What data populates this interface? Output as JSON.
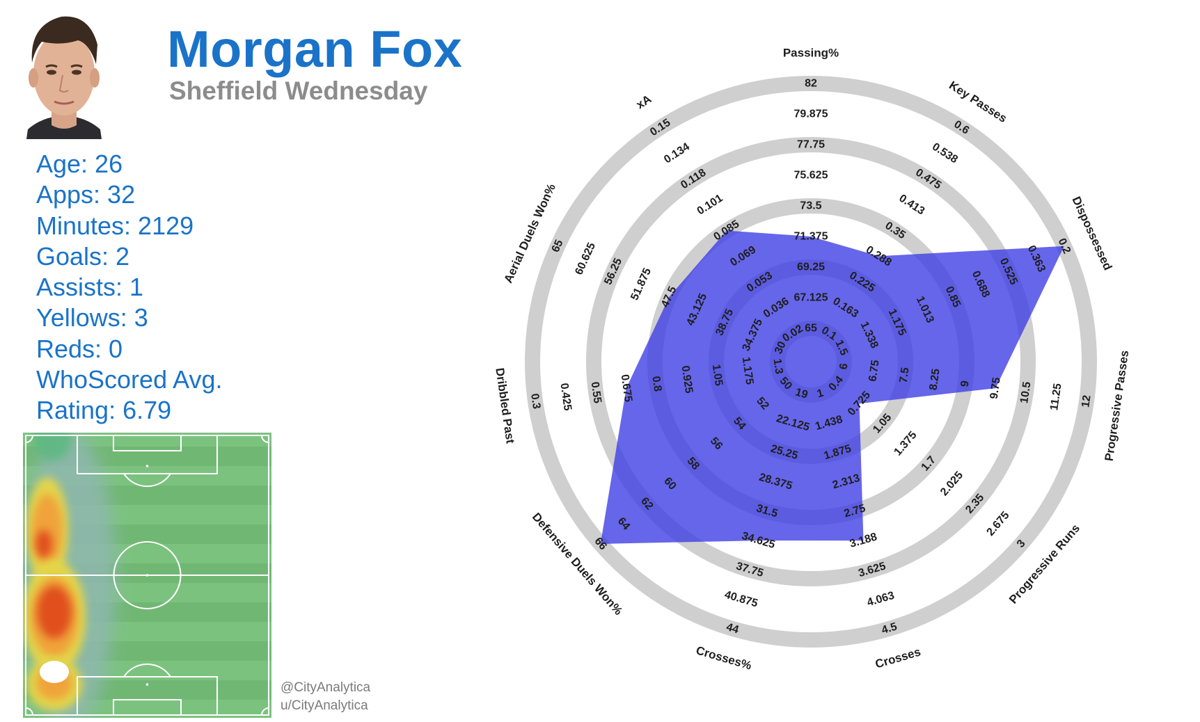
{
  "player": {
    "name": "Morgan Fox",
    "club": "Sheffield Wednesday"
  },
  "stats": [
    {
      "text": "Age: 26"
    },
    {
      "text": "Apps: 32"
    },
    {
      "text": "Minutes: 2129"
    },
    {
      "text": "Goals: 2"
    },
    {
      "text": "Assists: 1"
    },
    {
      "text": "Yellows: 3"
    },
    {
      "text": "Reds: 0"
    },
    {
      "text": "WhoScored Avg."
    },
    {
      "text": "Rating: 6.79"
    }
  ],
  "credits": {
    "twitter": "@CityAnalytica",
    "reddit": "u/CityAnalytica"
  },
  "colors": {
    "accent": "#1a73c8",
    "club_text": "#8c8c8c",
    "radar_fill": "#3b3be6",
    "ring_gray": "#cfcfcf"
  },
  "chart_data": {
    "type": "radar",
    "title": "",
    "axes": [
      {
        "label": "Passing%",
        "ticks": [
          "65",
          "67.125",
          "69.25",
          "71.375",
          "73.5",
          "75.625",
          "77.75",
          "79.875",
          "82"
        ],
        "min": 65,
        "max": 82
      },
      {
        "label": "Key Passes",
        "ticks": [
          "0.1",
          "0.163",
          "0.225",
          "0.288",
          "0.35",
          "0.413",
          "0.475",
          "0.538",
          "0.6"
        ],
        "min": 0.1,
        "max": 0.6
      },
      {
        "label": "Dispossessed",
        "ticks": [
          "1.5",
          "1.338",
          "1.175",
          "1.013",
          "0.85",
          "0.688",
          "0.525",
          "0.363",
          "0.2"
        ],
        "min": 1.5,
        "max": 0.2
      },
      {
        "label": "Progressive Passes",
        "ticks": [
          "6",
          "6.75",
          "7.5",
          "8.25",
          "9",
          "9.75",
          "10.5",
          "11.25",
          "12"
        ],
        "min": 6,
        "max": 12
      },
      {
        "label": "Progressive Runs",
        "ticks": [
          "0.4",
          "0.725",
          "1.05",
          "1.375",
          "1.7",
          "2.025",
          "2.35",
          "2.675",
          "3"
        ],
        "min": 0.4,
        "max": 3
      },
      {
        "label": "Crosses",
        "ticks": [
          "1",
          "1.438",
          "1.875",
          "2.313",
          "2.75",
          "3.188",
          "3.625",
          "4.063",
          "4.5"
        ],
        "min": 1,
        "max": 4.5
      },
      {
        "label": "Crosses%",
        "ticks": [
          "19",
          "22.125",
          "25.25",
          "28.375",
          "31.5",
          "34.625",
          "37.75",
          "40.875",
          "44"
        ],
        "min": 19,
        "max": 44
      },
      {
        "label": "Defensive Duels Won%",
        "ticks": [
          "50",
          "52",
          "54",
          "56",
          "58",
          "60",
          "62",
          "64",
          "66"
        ],
        "min": 50,
        "max": 66
      },
      {
        "label": "Dribbled Past",
        "ticks": [
          "1.3",
          "1.175",
          "1.05",
          "0.925",
          "0.8",
          "0.675",
          "0.55",
          "0.425",
          "0.3"
        ],
        "min": 1.3,
        "max": 0.3
      },
      {
        "label": "Aerial Duels Won%",
        "ticks": [
          "30",
          "34.375",
          "38.75",
          "43.125",
          "47.5",
          "51.875",
          "56.25",
          "60.625",
          "65"
        ],
        "min": 30,
        "max": 65
      },
      {
        "label": "xA",
        "ticks": [
          "0.02",
          "0.036",
          "0.053",
          "0.069",
          "0.085",
          "0.101",
          "0.118",
          "0.134",
          "0.15"
        ],
        "min": 0.02,
        "max": 0.15
      }
    ],
    "values": [
      71.375,
      0.288,
      0.2,
      9.75,
      0.725,
      3.188,
      34.625,
      66,
      0.675,
      47.5,
      0.085
    ]
  }
}
